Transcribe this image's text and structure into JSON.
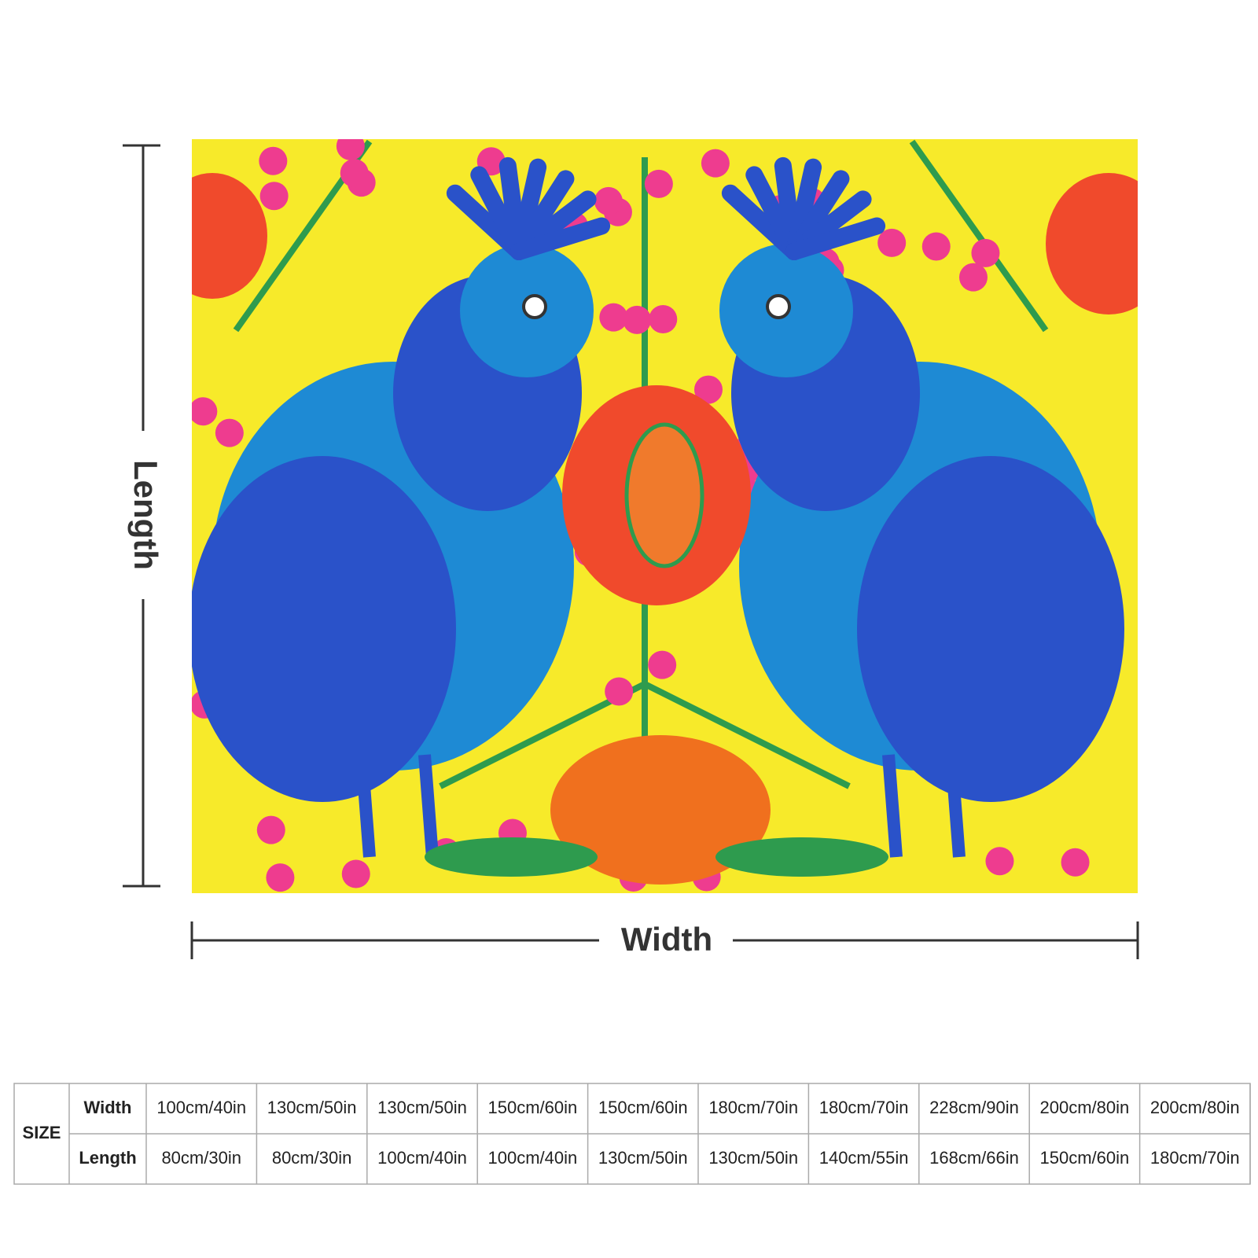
{
  "dimensions": {
    "length_label": "Length",
    "width_label": "Width"
  },
  "table": {
    "size_label": "SIZE",
    "rows": [
      {
        "label": "Width",
        "cells": [
          "100cm/40in",
          "130cm/50in",
          "130cm/50in",
          "150cm/60in",
          "150cm/60in",
          "180cm/70in",
          "180cm/70in",
          "228cm/90in",
          "200cm/80in",
          "200cm/80in"
        ]
      },
      {
        "label": "Length",
        "cells": [
          "80cm/30in",
          "80cm/30in",
          "100cm/40in",
          "100cm/40in",
          "130cm/50in",
          "130cm/50in",
          "140cm/55in",
          "168cm/66in",
          "150cm/60in",
          "180cm/70in"
        ]
      }
    ]
  }
}
